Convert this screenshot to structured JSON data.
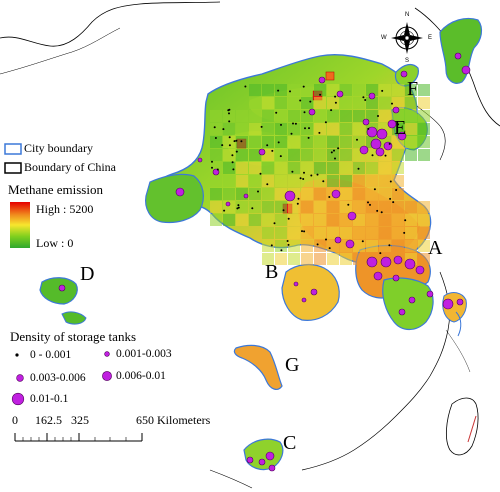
{
  "map": {
    "region_labels": [
      "A",
      "B",
      "C",
      "D",
      "E",
      "F",
      "G"
    ],
    "compass": {
      "n": "N",
      "s": "S",
      "e": "E",
      "w": "W"
    }
  },
  "legend": {
    "boundary": {
      "city_label": "City boundary",
      "china_label": "Boundary of China",
      "city_color": "#3c78d8",
      "china_color": "#000000"
    },
    "emission": {
      "title": "Methane emission",
      "high_label": "High : 5200",
      "low_label": "Low : 0",
      "colors": [
        "#e60000",
        "#f08c1e",
        "#f7e62e",
        "#7fcf1e",
        "#2ea82e"
      ]
    },
    "tanks": {
      "title": "Density of storage tanks",
      "classes": [
        {
          "label": "0 - 0.001"
        },
        {
          "label": "0.001-0.003"
        },
        {
          "label": "0.003-0.006"
        },
        {
          "label": "0.006-0.01"
        },
        {
          "label": "0.01-0.1"
        }
      ],
      "marker_fill": "#c020e0",
      "marker_stroke": "#50005a"
    },
    "scalebar": {
      "ticks": [
        "0",
        "162.5",
        "325",
        "650 Kilometers"
      ]
    }
  }
}
